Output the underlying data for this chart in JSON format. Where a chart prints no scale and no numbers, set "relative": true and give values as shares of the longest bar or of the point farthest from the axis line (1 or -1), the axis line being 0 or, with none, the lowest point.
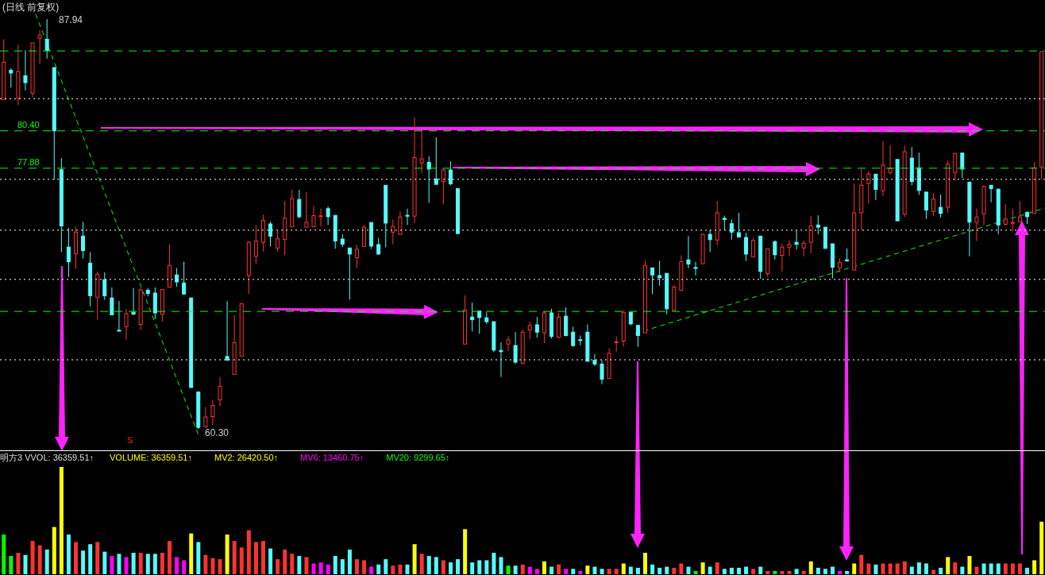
{
  "chart_data": [
    {
      "type": "candlestick",
      "title": "(日线 前复权)",
      "categories": [
        null,
        null,
        null,
        null,
        null,
        null,
        null,
        null,
        null,
        null,
        null,
        null,
        null,
        null,
        null,
        null,
        null,
        null,
        null,
        null,
        null,
        null,
        null,
        null,
        null,
        null,
        null,
        null,
        null,
        null,
        null,
        null,
        null,
        null,
        null,
        null,
        null,
        null,
        null,
        null,
        null,
        null,
        null,
        null,
        null,
        null,
        null,
        null,
        null,
        null,
        null,
        null,
        null,
        null,
        null,
        null,
        null,
        null,
        null,
        null,
        null,
        null,
        null,
        null,
        null,
        null,
        null,
        null,
        null,
        null,
        null,
        null,
        null,
        null,
        null,
        null,
        null,
        null,
        null,
        null,
        null,
        null,
        null,
        null,
        null,
        null,
        null,
        null,
        null,
        null,
        null,
        null,
        null,
        null,
        null,
        null,
        null,
        null,
        null,
        null,
        null,
        null,
        null,
        null,
        null,
        null,
        null,
        null,
        null,
        null,
        null,
        null,
        null,
        null,
        null,
        null,
        null,
        null,
        null,
        null,
        null,
        null,
        null,
        null,
        null,
        null,
        null,
        null,
        null,
        null,
        null,
        null,
        null,
        null,
        null,
        null,
        null,
        null,
        null,
        null,
        null,
        null,
        null,
        null,
        null
      ],
      "ohlc": [
        [
          82.51,
          86.58,
          82.51,
          85.03
        ],
        [
          84.49,
          84.62,
          83.31,
          84.3
        ],
        [
          82.62,
          86.2,
          82.14,
          84.4
        ],
        [
          84.12,
          85.83,
          83.13,
          83.65
        ],
        [
          82.94,
          86.33,
          82.66,
          86.33
        ],
        [
          86.65,
          87.17,
          84.9,
          86.86
        ],
        [
          86.58,
          87.94,
          85.27,
          85.83
        ],
        [
          84.67,
          84.67,
          77.13,
          80.4
        ],
        [
          77.78,
          78.56,
          72.22,
          73.99
        ],
        [
          72.56,
          73.85,
          70.55,
          71.57
        ],
        [
          72.11,
          73.94,
          71.1,
          73.57
        ],
        [
          73.3,
          74.27,
          71.79,
          72.32
        ],
        [
          71.48,
          72.22,
          68.57,
          69.28
        ],
        [
          69.18,
          70.92,
          67.66,
          70.73
        ],
        [
          70.36,
          70.86,
          69.0,
          69.28
        ],
        [
          69.13,
          69.84,
          67.99,
          67.99
        ],
        [
          66.95,
          68.92,
          66.89,
          66.89
        ],
        [
          67.19,
          68.4,
          66.31,
          68.08
        ],
        [
          68.16,
          69.8,
          68.03,
          68.03
        ],
        [
          67.34,
          69.8,
          66.97,
          69.67
        ],
        [
          69.65,
          69.8,
          69.24,
          69.43
        ],
        [
          69.46,
          69.84,
          67.71,
          68.12
        ],
        [
          68.03,
          69.71,
          67.56,
          69.71
        ],
        [
          69.86,
          72.73,
          69.86,
          71.33
        ],
        [
          70.68,
          71.14,
          69.89,
          70.21
        ],
        [
          70.14,
          71.57,
          69.39,
          69.39
        ],
        [
          69.13,
          69.13,
          63.09,
          63.09
        ],
        [
          62.79,
          62.79,
          60.3,
          60.4
        ],
        [
          60.45,
          61.78,
          60.4,
          61.1
        ],
        [
          61.13,
          62.27,
          60.54,
          61.88
        ],
        [
          62.25,
          63.8,
          61.82,
          63.18
        ],
        [
          65.18,
          68.92,
          64.86,
          64.95
        ],
        [
          63.98,
          67.99,
          63.98,
          66.11
        ],
        [
          65.2,
          68.74,
          65.2,
          68.74
        ],
        [
          70.64,
          72.97,
          69.39,
          72.88
        ],
        [
          71.94,
          74.05,
          71.44,
          72.97
        ],
        [
          72.88,
          74.74,
          72.26,
          74.37
        ],
        [
          74.12,
          74.27,
          72.6,
          73.3
        ],
        [
          72.5,
          73.68,
          72.26,
          73.12
        ],
        [
          73.08,
          75.67,
          72.0,
          74.5
        ],
        [
          73.94,
          76.42,
          73.94,
          75.82
        ],
        [
          75.77,
          76.42,
          74.5,
          74.61
        ],
        [
          73.9,
          76.27,
          73.9,
          74.22
        ],
        [
          73.94,
          75.35,
          73.94,
          74.68
        ],
        [
          74.61,
          75.17,
          73.94,
          74.67
        ],
        [
          75.15,
          75.3,
          74.05,
          74.61
        ],
        [
          74.7,
          74.7,
          72.45,
          72.97
        ],
        [
          73.1,
          73.43,
          72.56,
          72.75
        ],
        [
          72.5,
          72.5,
          69.02,
          72.09
        ],
        [
          71.85,
          72.73,
          71.14,
          72.41
        ],
        [
          72.6,
          74.05,
          72.6,
          73.9
        ],
        [
          74.22,
          74.22,
          72.45,
          72.63
        ],
        [
          72.73,
          73.19,
          72.04,
          72.09
        ],
        [
          76.73,
          76.73,
          72.54,
          74.18
        ],
        [
          73.57,
          74.42,
          72.75,
          73.96
        ],
        [
          73.42,
          74.98,
          73.42,
          74.59
        ],
        [
          74.7,
          75.15,
          74.05,
          74.65
        ],
        [
          74.65,
          81.3,
          74.18,
          78.6
        ],
        [
          78.23,
          80.46,
          77.54,
          78.51
        ],
        [
          78.28,
          78.69,
          75.54,
          77.82
        ],
        [
          77.16,
          79.96,
          76.79,
          76.79
        ],
        [
          76.98,
          77.91,
          75.45,
          77.76
        ],
        [
          77.76,
          78.34,
          76.73,
          76.83
        ],
        [
          76.51,
          76.51,
          73.47,
          73.47
        ],
        [
          66.02,
          69.3,
          66.02,
          68.31
        ],
        [
          67.84,
          68.81,
          66.87,
          67.66
        ],
        [
          68.25,
          68.25,
          66.72,
          67.81
        ],
        [
          67.79,
          68.16,
          67.38,
          67.53
        ],
        [
          67.53,
          67.53,
          65.48,
          65.61
        ],
        [
          65.59,
          66.13,
          63.8,
          65.51
        ],
        [
          66.02,
          66.54,
          65.55,
          66.3
        ],
        [
          65.92,
          66.82,
          64.67,
          64.8
        ],
        [
          64.73,
          67.0,
          64.64,
          66.82
        ],
        [
          66.97,
          67.53,
          66.35,
          67.28
        ],
        [
          67.32,
          67.84,
          66.44,
          66.82
        ],
        [
          66.78,
          68.25,
          66.07,
          68.12
        ],
        [
          68.12,
          68.4,
          66.39,
          66.54
        ],
        [
          66.48,
          68.12,
          66.39,
          67.84
        ],
        [
          67.9,
          68.5,
          66.54,
          66.59
        ],
        [
          66.82,
          67.19,
          65.83,
          65.92
        ],
        [
          66.31,
          66.59,
          65.94,
          66.26
        ],
        [
          66.82,
          67.34,
          64.86,
          64.86
        ],
        [
          64.92,
          65.33,
          64.54,
          64.67
        ],
        [
          64.67,
          64.92,
          63.31,
          63.65
        ],
        [
          63.69,
          65.74,
          63.69,
          65.4
        ],
        [
          66.13,
          66.54,
          65.51,
          66.17
        ],
        [
          66.22,
          68.31,
          65.85,
          68.16
        ],
        [
          68.16,
          68.16,
          67.28,
          67.38
        ],
        [
          67.28,
          67.28,
          65.83,
          66.59
        ],
        [
          66.78,
          71.66,
          66.78,
          71.33
        ],
        [
          71.16,
          71.16,
          69.39,
          70.68
        ],
        [
          70.64,
          71.63,
          69.95,
          70.49
        ],
        [
          70.79,
          70.79,
          68.03,
          68.4
        ],
        [
          68.31,
          69.99,
          68.31,
          69.86
        ],
        [
          69.65,
          72.0,
          69.65,
          71.57
        ],
        [
          71.7,
          73.3,
          71.14,
          71.42
        ],
        [
          71.18,
          71.57,
          70.64,
          71.12
        ],
        [
          71.44,
          73.47,
          71.38,
          73.42
        ],
        [
          73.42,
          73.71,
          72.22,
          73.06
        ],
        [
          73.04,
          75.67,
          72.69,
          74.87
        ],
        [
          74.5,
          74.68,
          73.71,
          74.42
        ],
        [
          74.14,
          74.42,
          73.06,
          73.57
        ],
        [
          73.53,
          74.87,
          73.19,
          73.25
        ],
        [
          73.21,
          73.53,
          71.63,
          72.09
        ],
        [
          71.89,
          73.16,
          71.89,
          73.01
        ],
        [
          73.3,
          73.3,
          70.42,
          70.92
        ],
        [
          70.77,
          72.45,
          70.55,
          72.45
        ],
        [
          72.93,
          73.01,
          71.72,
          72.04
        ],
        [
          72.0,
          72.82,
          70.92,
          72.56
        ],
        [
          72.56,
          73.01,
          71.94,
          72.73
        ],
        [
          72.88,
          73.68,
          72.41,
          72.75
        ],
        [
          72.5,
          73.01,
          71.94,
          72.82
        ],
        [
          72.88,
          74.65,
          72.13,
          73.99
        ],
        [
          74.05,
          74.7,
          73.43,
          73.9
        ],
        [
          73.9,
          73.9,
          72.47,
          72.47
        ],
        [
          72.78,
          72.78,
          70.45,
          71.2
        ],
        [
          71.16,
          71.79,
          70.92,
          71.51
        ],
        [
          71.7,
          72.47,
          71.57,
          71.63
        ],
        [
          71.01,
          76.85,
          71.01,
          74.87
        ],
        [
          74.87,
          77.82,
          73.68,
          76.73
        ],
        [
          76.85,
          77.67,
          75.49,
          77.48
        ],
        [
          77.48,
          77.48,
          75.73,
          76.45
        ],
        [
          76.36,
          79.72,
          75.99,
          78.09
        ],
        [
          77.59,
          79.44,
          77.44,
          77.85
        ],
        [
          78.47,
          78.47,
          74.33,
          74.33
        ],
        [
          74.78,
          79.4,
          74.59,
          78.99
        ],
        [
          78.56,
          79.31,
          76.73,
          76.98
        ],
        [
          77.91,
          78.93,
          76.08,
          76.38
        ],
        [
          76.27,
          76.27,
          74.46,
          75.06
        ],
        [
          74.96,
          76.19,
          74.68,
          75.8
        ],
        [
          75.24,
          76.1,
          74.55,
          74.83
        ],
        [
          75.24,
          78.41,
          74.87,
          78.13
        ],
        [
          77.59,
          78.88,
          77.03,
          78.88
        ],
        [
          78.9,
          78.93,
          77.22,
          77.82
        ],
        [
          76.94,
          76.94,
          71.94,
          74.24
        ],
        [
          74.22,
          75.17,
          72.97,
          74.59
        ],
        [
          74.8,
          76.73,
          74.05,
          76.64
        ],
        [
          76.73,
          76.73,
          75.58,
          76.51
        ],
        [
          76.47,
          76.47,
          73.43,
          74.05
        ],
        [
          74.09,
          75.45,
          74.05,
          74.46
        ],
        [
          74.16,
          75.15,
          73.62,
          74.22
        ],
        [
          74.27,
          75.67,
          74.27,
          74.59
        ],
        [
          74.89,
          74.98,
          74.12,
          74.61
        ],
        [
          74.83,
          78.28,
          74.83,
          77.91
        ],
        [
          77.96,
          85.74,
          77.13,
          85.74
        ]
      ],
      "colors": [
        "#ff3232",
        "#54fcfc",
        "#ff3232",
        "#54fcfc",
        "#ff3232",
        "#ff3232",
        "#54fcfc",
        "#54fcfc",
        "#54fcfc",
        "#54fcfc",
        "#ff3232",
        "#54fcfc",
        "#54fcfc",
        "#ff3232",
        "#54fcfc",
        "#54fcfc",
        "#54fcfc",
        "#ff3232",
        "#54fcfc",
        "#ff3232",
        "#54fcfc",
        "#54fcfc",
        "#ff3232",
        "#ff3232",
        "#54fcfc",
        "#54fcfc",
        "#54fcfc",
        "#54fcfc",
        "#ff3232",
        "#ff3232",
        "#ff3232",
        "#54fcfc",
        "#ff3232",
        "#ff3232",
        "#ff3232",
        "#ff3232",
        "#ff3232",
        "#54fcfc",
        "#ff3232",
        "#ff3232",
        "#ff3232",
        "#54fcfc",
        "#ff3232",
        "#ff3232",
        "#ff3232",
        "#54fcfc",
        "#54fcfc",
        "#54fcfc",
        "#54fcfc",
        "#ff3232",
        "#ff3232",
        "#54fcfc",
        "#54fcfc",
        "#54fcfc",
        "#ff3232",
        "#ff3232",
        "#54fcfc",
        "#ff3232",
        "#ff3232",
        "#54fcfc",
        "#54fcfc",
        "#ff3232",
        "#54fcfc",
        "#54fcfc",
        "#ff3232",
        "#54fcfc",
        "#54fcfc",
        "#54fcfc",
        "#54fcfc",
        "#54fcfc",
        "#ff3232",
        "#54fcfc",
        "#ff3232",
        "#ff3232",
        "#54fcfc",
        "#ff3232",
        "#54fcfc",
        "#ff3232",
        "#54fcfc",
        "#54fcfc",
        "#54fcfc",
        "#54fcfc",
        "#54fcfc",
        "#54fcfc",
        "#ff3232",
        "#ff3232",
        "#ff3232",
        "#54fcfc",
        "#54fcfc",
        "#ff3232",
        "#54fcfc",
        "#54fcfc",
        "#54fcfc",
        "#ff3232",
        "#ff3232",
        "#54fcfc",
        "#54fcfc",
        "#ff3232",
        "#54fcfc",
        "#ff3232",
        "#54fcfc",
        "#54fcfc",
        "#54fcfc",
        "#54fcfc",
        "#ff3232",
        "#54fcfc",
        "#ff3232",
        "#54fcfc",
        "#ff3232",
        "#ff3232",
        "#54fcfc",
        "#ff3232",
        "#ff3232",
        "#54fcfc",
        "#54fcfc",
        "#54fcfc",
        "#ff3232",
        "#54fcfc",
        "#ff3232",
        "#ff3232",
        "#ff3232",
        "#54fcfc",
        "#ff3232",
        "#ff3232",
        "#54fcfc",
        "#ff3232",
        "#54fcfc",
        "#54fcfc",
        "#54fcfc",
        "#ff3232",
        "#54fcfc",
        "#ff3232",
        "#ff3232",
        "#54fcfc",
        "#54fcfc",
        "#ff3232",
        "#ff3232",
        "#54fcfc",
        "#54fcfc",
        "#ff3232",
        "#ff3232",
        "#ff3232",
        "#54fcfc",
        "#ff3232",
        "#ff3232"
      ],
      "ref_lines": [
        {
          "axis": "y",
          "value": 85.79,
          "label": null,
          "color": "#00ff00",
          "line_style": "dashed"
        },
        {
          "axis": "y",
          "value": 80.4,
          "label": "80.40",
          "color": "#00ff00",
          "line_style": "dashed"
        },
        {
          "axis": "y",
          "value": 77.88,
          "label": "77.88",
          "color": "#00ff00",
          "line_style": "dashed"
        },
        {
          "axis": "y",
          "value": 68.22,
          "label": null,
          "color": "#00ff00",
          "line_style": "dashed"
        },
        {
          "axis": "y",
          "value": 82.57,
          "label": null,
          "color": "#ffffff",
          "line_style": "dotted"
        },
        {
          "axis": "y",
          "value": 77.13,
          "label": null,
          "color": "#ffffff",
          "line_style": "dotted"
        },
        {
          "axis": "y",
          "value": 73.7,
          "label": null,
          "color": "#ffffff",
          "line_style": "dotted"
        },
        {
          "axis": "y",
          "value": 70.38,
          "label": null,
          "color": "#ffffff",
          "line_style": "dotted"
        },
        {
          "axis": "y",
          "value": 64.96,
          "label": null,
          "color": "#ffffff",
          "line_style": "dotted"
        }
      ],
      "annotations": [
        "87.94",
        "60.30",
        "S"
      ]
    },
    {
      "type": "bar",
      "relative": true,
      "categories": [
        null,
        null,
        null,
        null,
        null,
        null,
        null,
        null,
        null,
        null,
        null,
        null,
        null,
        null,
        null,
        null,
        null,
        null,
        null,
        null,
        null,
        null,
        null,
        null,
        null,
        null,
        null,
        null,
        null,
        null,
        null,
        null,
        null,
        null,
        null,
        null,
        null,
        null,
        null,
        null,
        null,
        null,
        null,
        null,
        null,
        null,
        null,
        null,
        null,
        null,
        null,
        null,
        null,
        null,
        null,
        null,
        null,
        null,
        null,
        null,
        null,
        null,
        null,
        null,
        null,
        null,
        null,
        null,
        null,
        null,
        null,
        null,
        null,
        null,
        null,
        null,
        null,
        null,
        null,
        null,
        null,
        null,
        null,
        null,
        null,
        null,
        null,
        null,
        null,
        null,
        null,
        null,
        null,
        null,
        null,
        null,
        null,
        null,
        null,
        null,
        null,
        null,
        null,
        null,
        null,
        null,
        null,
        null,
        null,
        null,
        null,
        null,
        null,
        null,
        null,
        null,
        null,
        null,
        null,
        null,
        null,
        null,
        null,
        null,
        null,
        null,
        null,
        null,
        null,
        null,
        null,
        null,
        null,
        null,
        null,
        null,
        null,
        null,
        null,
        null,
        null,
        null,
        null,
        null,
        null
      ],
      "values": [
        0.37,
        0.17,
        0.2,
        0.18,
        0.31,
        0.27,
        0.23,
        0.44,
        1,
        0.37,
        0.3,
        0.22,
        0.28,
        0.3,
        0.21,
        0.17,
        0.19,
        0.16,
        0.2,
        0.2,
        0.19,
        0.19,
        0.2,
        0.31,
        0.16,
        0.13,
        0.38,
        0.3,
        0.18,
        0.15,
        0.14,
        0.37,
        0.31,
        0.25,
        0.41,
        0.3,
        0.31,
        0.24,
        0.14,
        0.23,
        0.19,
        0.17,
        0.16,
        0.1,
        0.11,
        0.09,
        0.17,
        0.14,
        0.23,
        0.14,
        0.13,
        0.07,
        0.09,
        0.14,
        0.08,
        0.09,
        0.09,
        0.28,
        0.19,
        0.17,
        0.16,
        0.13,
        0.11,
        0.14,
        0.42,
        0.11,
        0.13,
        0.13,
        0.2,
        0.16,
        0.08,
        0.08,
        0.09,
        0.07,
        0.05,
        0.12,
        0.07,
        0.09,
        0.05,
        0.05,
        0.03,
        0.08,
        0.07,
        0.05,
        0.05,
        0.05,
        0.1,
        0.07,
        0.06,
        0.2,
        0.09,
        0.06,
        0.07,
        0.06,
        0.1,
        0.07,
        0.03,
        0.11,
        0.07,
        0.11,
        0.05,
        0.06,
        0.06,
        0.07,
        0.05,
        0.07,
        0.03,
        0.03,
        0.03,
        0.03,
        0.05,
        0.03,
        0.12,
        0.06,
        0.05,
        0.07,
        0.03,
        0.03,
        0.1,
        0.18,
        0.1,
        0.09,
        0.1,
        0.1,
        0.1,
        0.12,
        0.07,
        0.11,
        0.1,
        0.04,
        0.06,
        0.16,
        0.11,
        0.07,
        0.17,
        0.07,
        0.1,
        0.1,
        0.1,
        0.1,
        0.1,
        0.1,
        0.06,
        0.13,
        0.49
      ],
      "colors": [
        "#00ff00",
        "#00ff00",
        "#ff3232",
        "#54fcfc",
        "#ff3232",
        "#ff3232",
        "#54fcfc",
        "#ffff00",
        "#ffff00",
        "#54fcfc",
        "#ff3232",
        "#54fcfc",
        "#54fcfc",
        "#ff3232",
        "#54fcfc",
        "#ff00ff",
        "#54fcfc",
        "#ff00ff",
        "#54fcfc",
        "#ff3232",
        "#54fcfc",
        "#54fcfc",
        "#ff3232",
        "#ff3232",
        "#ff00ff",
        "#ff00ff",
        "#ffff00",
        "#54fcfc",
        "#ff3232",
        "#ff3232",
        "#ff3232",
        "#ffff00",
        "#ff3232",
        "#ff3232",
        "#ff3232",
        "#ff3232",
        "#ff3232",
        "#54fcfc",
        "#ff3232",
        "#ff3232",
        "#ff3232",
        "#54fcfc",
        "#ff3232",
        "#ff00ff",
        "#ff00ff",
        "#ff00ff",
        "#54fcfc",
        "#54fcfc",
        "#54fcfc",
        "#ff3232",
        "#ff3232",
        "#ff00ff",
        "#54fcfc",
        "#54fcfc",
        "#ff3232",
        "#ff3232",
        "#54fcfc",
        "#ffff00",
        "#ff3232",
        "#54fcfc",
        "#54fcfc",
        "#ff3232",
        "#54fcfc",
        "#54fcfc",
        "#ffff00",
        "#54fcfc",
        "#54fcfc",
        "#54fcfc",
        "#54fcfc",
        "#54fcfc",
        "#00ff00",
        "#54fcfc",
        "#ff3232",
        "#ff00ff",
        "#ff00ff",
        "#ffff00",
        "#54fcfc",
        "#ff3232",
        "#ff00ff",
        "#54fcfc",
        "#ff00ff",
        "#ffff00",
        "#54fcfc",
        "#54fcfc",
        "#ff3232",
        "#ff3232",
        "#ffff00",
        "#54fcfc",
        "#54fcfc",
        "#ffff00",
        "#54fcfc",
        "#54fcfc",
        "#54fcfc",
        "#ff3232",
        "#ff3232",
        "#54fcfc",
        "#00ff00",
        "#ffff00",
        "#54fcfc",
        "#ff3232",
        "#54fcfc",
        "#54fcfc",
        "#54fcfc",
        "#54fcfc",
        "#ff3232",
        "#54fcfc",
        "#ff3232",
        "#00ff00",
        "#ff3232",
        "#ff3232",
        "#54fcfc",
        "#ff3232",
        "#ffff00",
        "#54fcfc",
        "#54fcfc",
        "#54fcfc",
        "#ff00ff",
        "#54fcfc",
        "#ffff00",
        "#ff3232",
        "#ff3232",
        "#54fcfc",
        "#ff3232",
        "#ff3232",
        "#ff3232",
        "#ff3232",
        "#54fcfc",
        "#54fcfc",
        "#54fcfc",
        "#ff3232",
        "#54fcfc",
        "#ffff00",
        "#ff3232",
        "#54fcfc",
        "#ffff00",
        "#ff3232",
        "#54fcfc",
        "#54fcfc",
        "#54fcfc",
        "#ff3232",
        "#ff3232",
        "#ff3232",
        "#54fcfc",
        "#ffff00",
        "#ffff00"
      ],
      "annotations": [
        "明方3 VVOL: 36359.51↑",
        "VOLUME: 36359.51↑",
        "MV2: 26420.50↑",
        "MV6: 13460.75↑",
        "MV20: 9299.65↑"
      ]
    }
  ]
}
